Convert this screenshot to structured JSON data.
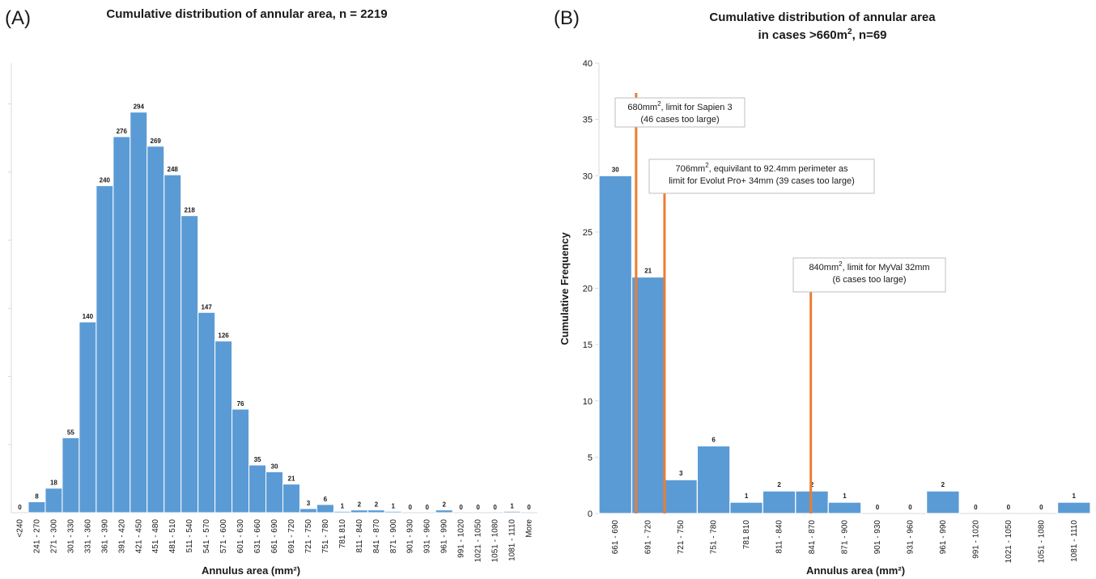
{
  "colors": {
    "bar": "#5b9bd5",
    "limit_line": "#ed7d31",
    "axis": "#d9d9d9"
  },
  "chart_data": [
    {
      "panel_label": "(A)",
      "type": "bar",
      "title": "Cumulative distribution of annular area, n = 2219",
      "xlabel": "Annulus area (mm²)",
      "ylabel": "",
      "ylim": [
        0,
        330
      ],
      "categories": [
        "<240",
        "241 - 270",
        "271 - 300",
        "301 - 330",
        "331 - 360",
        "361 - 390",
        "391 - 420",
        "421 - 450",
        "451 - 480",
        "481 - 510",
        "511 - 540",
        "541 - 570",
        "571 - 600",
        "601 - 630",
        "631 - 660",
        "661 - 690",
        "691 - 720",
        "721 - 750",
        "751 - 780",
        "781 810",
        "811 - 840",
        "841 - 870",
        "871 - 900",
        "901 - 930",
        "931 - 960",
        "961 - 990",
        "991 - 1020",
        "1021 - 1050",
        "1051 - 1080",
        "1081 - 1110",
        "More"
      ],
      "values": [
        0,
        8,
        18,
        55,
        140,
        240,
        276,
        294,
        269,
        248,
        218,
        147,
        126,
        76,
        35,
        30,
        21,
        3,
        6,
        1,
        2,
        2,
        1,
        0,
        0,
        2,
        0,
        0,
        0,
        1,
        0
      ],
      "grid": false
    },
    {
      "panel_label": "(B)",
      "type": "bar",
      "title": "Cumulative distribution of annular area",
      "title_line2_main": "in cases >660m",
      "title_line2_sup": "2",
      "title_line2_tail": ", n=69",
      "xlabel": "Annulus area (mm²)",
      "ylabel": "Cumulative Frequency",
      "ylim": [
        0,
        40
      ],
      "yticks": [
        0,
        5,
        10,
        15,
        20,
        25,
        30,
        35,
        40
      ],
      "categories": [
        "661 - 690",
        "691 - 720",
        "721 - 750",
        "751 - 780",
        "781 810",
        "811 - 840",
        "841 - 870",
        "871 - 900",
        "901 - 930",
        "931 - 960",
        "961 - 990",
        "991 - 1020",
        "1021 - 1050",
        "1051 - 1080",
        "1081 - 1110"
      ],
      "values": [
        30,
        21,
        3,
        6,
        1,
        2,
        2,
        1,
        0,
        0,
        2,
        0,
        0,
        0,
        1
      ],
      "grid": false,
      "annotations": [
        {
          "x_area": 680,
          "line1_main": "680mm",
          "line1_sup": "2",
          "line1_tail": ", limit for Sapien 3",
          "line2": "(46 cases too large)"
        },
        {
          "x_area": 706,
          "line1_main": "706mm",
          "line1_sup": "2",
          "line1_tail": ", equivilant to 92.4mm perimeter as",
          "line2": "limit for Evolut Pro+ 34mm (39 cases too large)"
        },
        {
          "x_area": 840,
          "line1_main": "840mm",
          "line1_sup": "2",
          "line1_tail": ", limit for MyVal 32mm",
          "line2": "(6 cases too large)"
        }
      ]
    }
  ]
}
